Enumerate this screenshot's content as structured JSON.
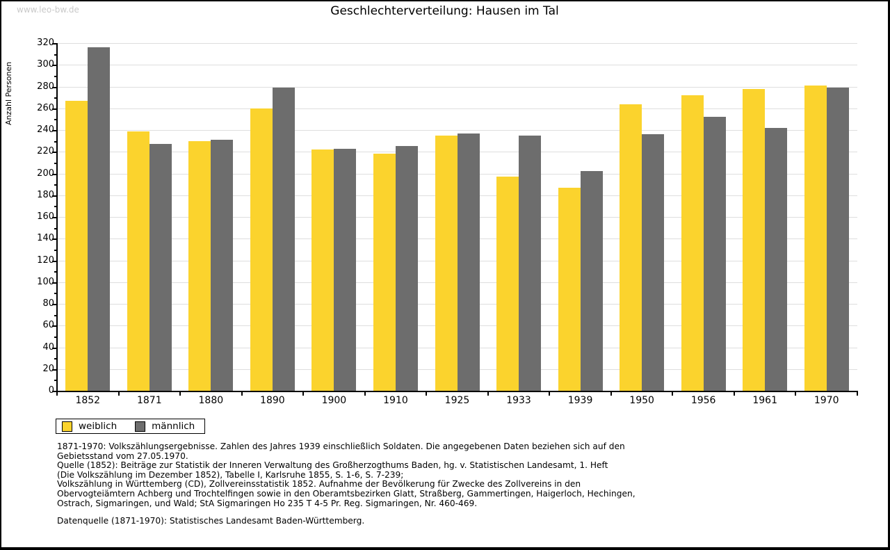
{
  "watermark": "www.leo-bw.de",
  "title": "Geschlechterverteilung: Hausen im Tal",
  "chart_data": {
    "type": "bar",
    "title": "Geschlechterverteilung: Hausen im Tal",
    "xlabel": "",
    "ylabel": "Anzahl Personen",
    "ylim": [
      0,
      320
    ],
    "ytick_step": 20,
    "ytick_minor_step": 10,
    "grid": true,
    "legend_position": "bottom-left",
    "categories": [
      "1852",
      "1871",
      "1880",
      "1890",
      "1900",
      "1910",
      "1925",
      "1933",
      "1939",
      "1950",
      "1956",
      "1961",
      "1970"
    ],
    "series": [
      {
        "name": "weiblich",
        "color": "#fbd32d",
        "values": [
          267,
          239,
          230,
          260,
          222,
          218,
          235,
          197,
          187,
          264,
          272,
          278,
          281
        ]
      },
      {
        "name": "männlich",
        "color": "#6d6d6d",
        "values": [
          316,
          227,
          231,
          279,
          223,
          225,
          237,
          235,
          202,
          236,
          252,
          242,
          279
        ]
      }
    ]
  },
  "footer": {
    "lines": [
      "1871-1970: Volkszählungsergebnisse. Zahlen des Jahres 1939 einschließlich Soldaten. Die angegebenen Daten beziehen sich auf den",
      "Gebietsstand vom 27.05.1970.",
      "Quelle (1852): Beiträge zur Statistik der Inneren Verwaltung des Großherzogthums Baden, hg. v. Statistischen Landesamt, 1. Heft",
      "(Die Volkszählung im Dezember 1852), Tabelle I, Karlsruhe 1855, S. 1-6, S. 7-239;",
      "Volkszählung in Württemberg (CD), Zollvereinsstatistik 1852. Aufnahme der Bevölkerung für Zwecke des Zollvereins in den",
      "Obervogteiämtern Achberg und Trochtelfingen sowie in den Oberamtsbezirken Glatt, Straßberg, Gammertingen, Haigerloch, Hechingen,",
      "Ostrach, Sigmaringen, und Wald; StA Sigmaringen Ho 235 T 4-5 Pr. Reg. Sigmaringen, Nr. 460-469."
    ],
    "datasource": "Datenquelle (1871-1970): Statistisches Landesamt Baden-Württemberg."
  },
  "colors": {
    "grid": "#dedede",
    "axis": "#000000",
    "watermark": "#c9c9c9"
  }
}
